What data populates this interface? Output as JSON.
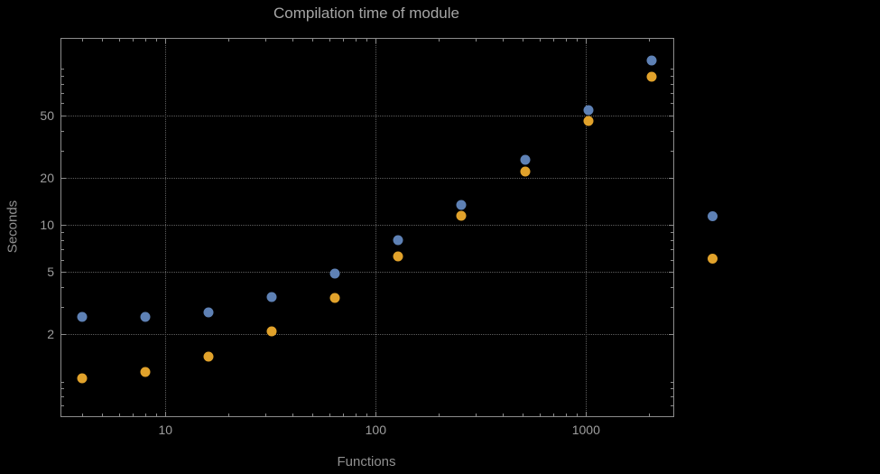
{
  "chart_data": {
    "type": "scatter",
    "title": "Compilation time of module",
    "xlabel": "Functions",
    "ylabel": "Seconds",
    "xscale": "log",
    "yscale": "log",
    "xlim": [
      3.2,
      2600
    ],
    "ylim": [
      0.6,
      155
    ],
    "x_ticks": [
      10,
      100,
      1000
    ],
    "y_ticks": [
      2,
      5,
      10,
      20,
      50
    ],
    "grid": true,
    "grid_style": "dotted",
    "legend_position": "right-outside",
    "background_color": "#000000",
    "x": [
      4,
      8,
      16,
      32,
      64,
      128,
      256,
      512,
      1024,
      2048
    ],
    "series": [
      {
        "color": "#5e81b5",
        "values": [
          2.6,
          2.6,
          2.75,
          3.45,
          4.9,
          8.0,
          13.5,
          26,
          54,
          112
        ]
      },
      {
        "color": "#e1a22b",
        "values": [
          1.05,
          1.15,
          1.45,
          2.1,
          3.4,
          6.3,
          11.5,
          22,
          46,
          89
        ]
      }
    ]
  }
}
